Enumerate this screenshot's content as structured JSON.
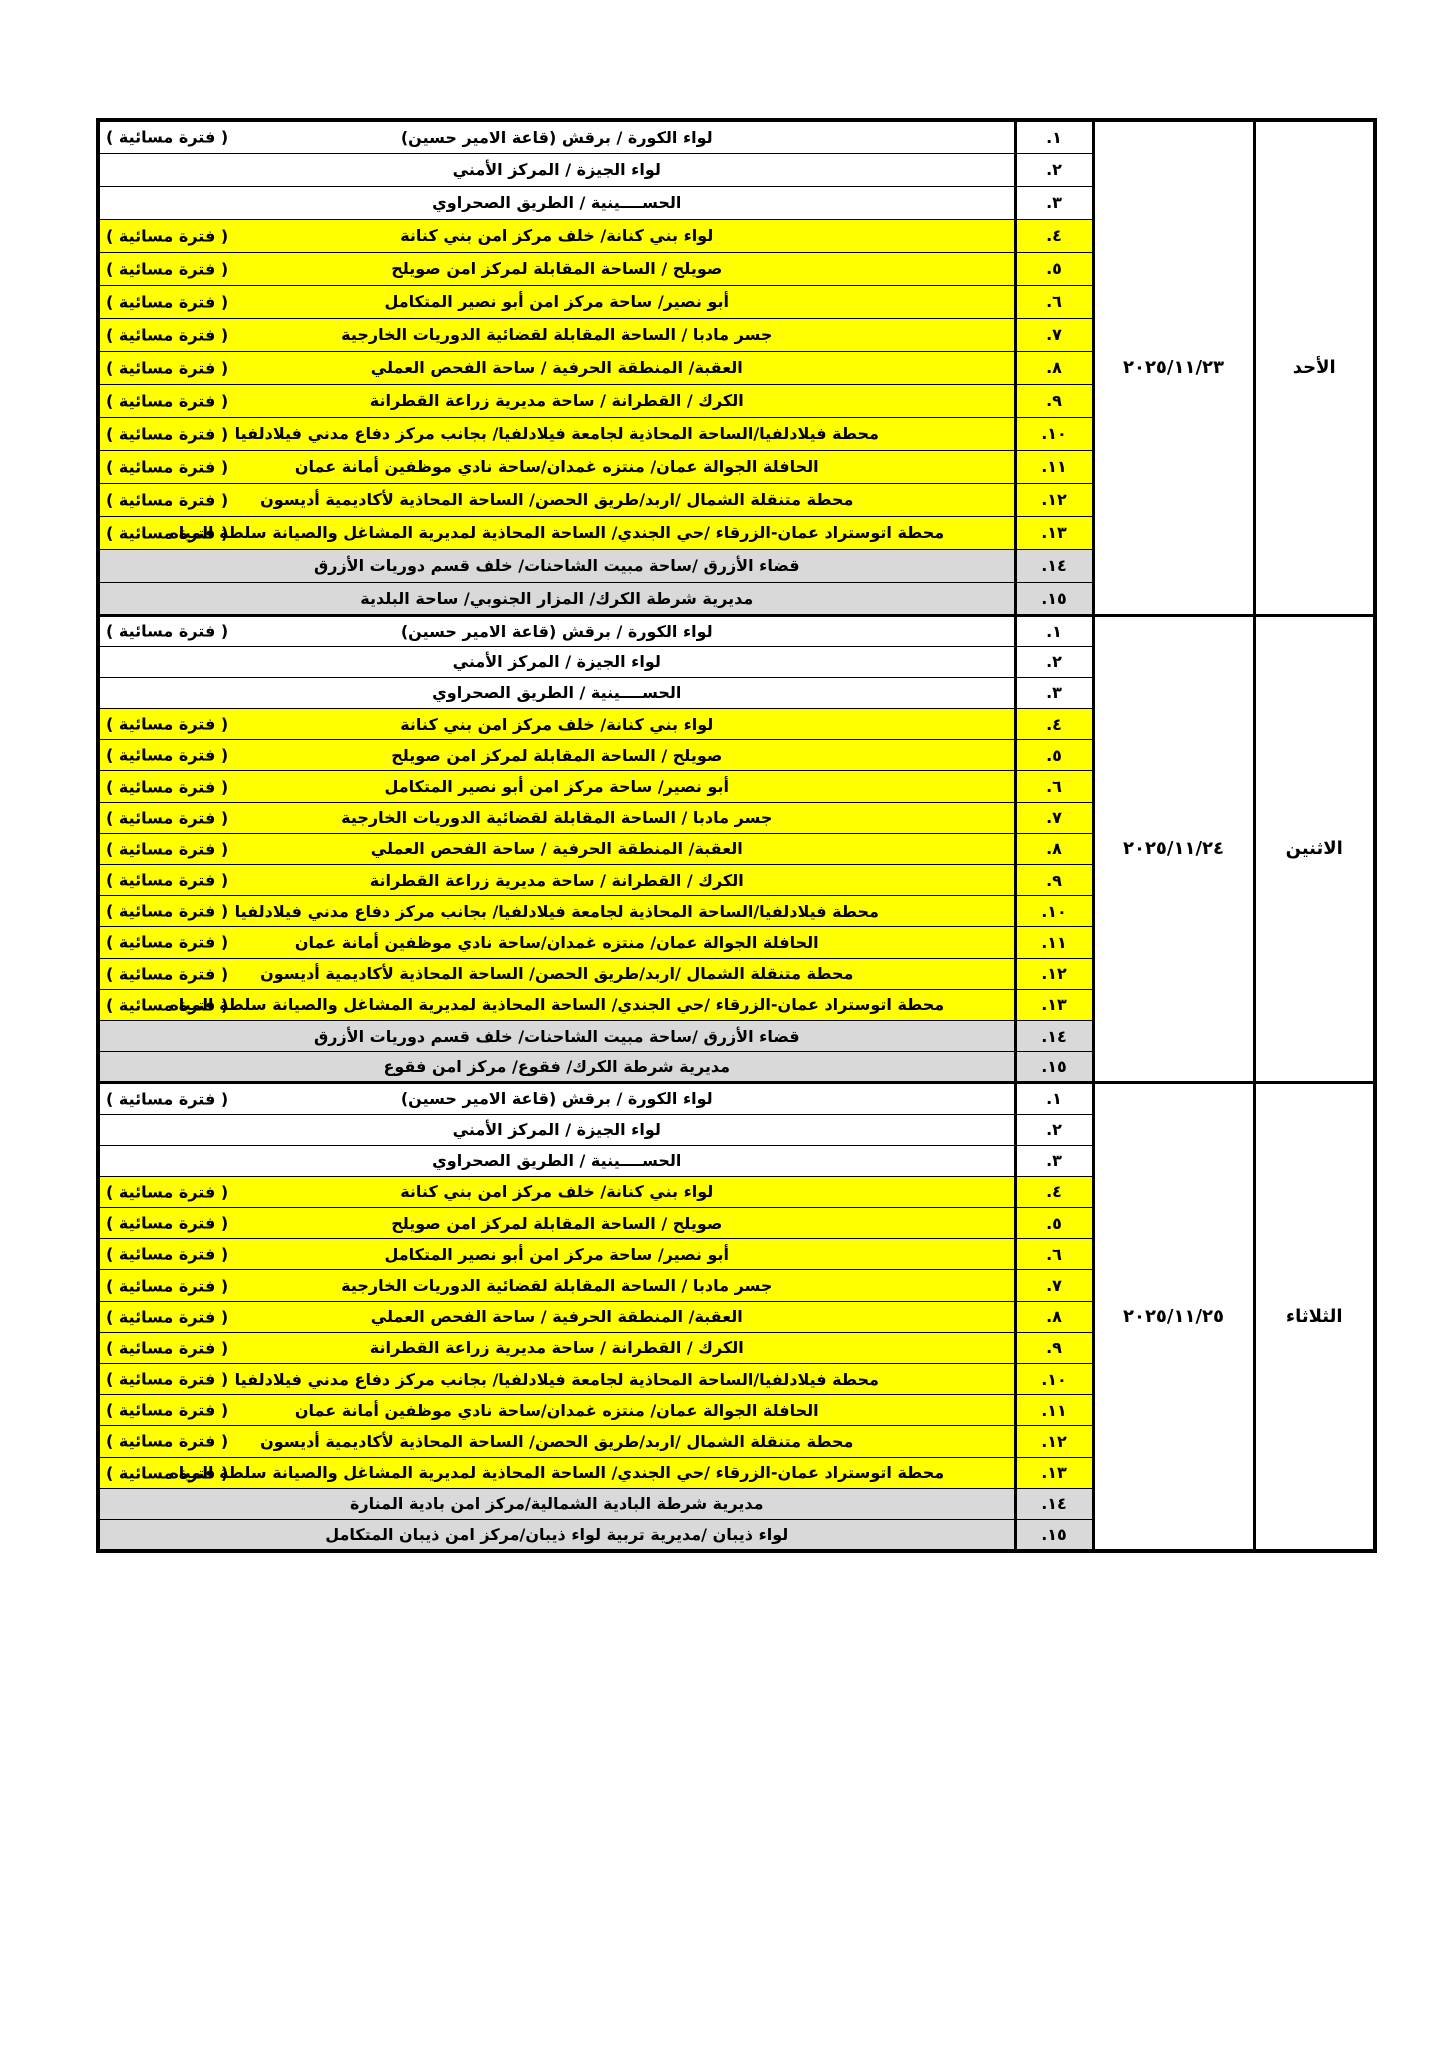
{
  "schedule": [
    {
      "day": "الأحد",
      "date": "٢٠٢٥/١١/٢٣",
      "rows": [
        {
          "num": "١.",
          "text": "لواء الكورة / برقش (قاعة الامير حسين)",
          "note": "( فترة مسائية )"
        },
        {
          "num": "٢.",
          "text": "لواء الجيزة / المركز الأمني"
        },
        {
          "num": "٣.",
          "text": "الحســــينية / الطريق الصحراوي"
        },
        {
          "num": "٤.",
          "text": "لواء بني كنانة/ خلف مركز امن بني كنانة",
          "note": "( فترة مسائية )"
        },
        {
          "num": "٥.",
          "text": "صويلح / الساحة المقابلة لمركز امن صويلح",
          "note": "( فترة مسائية )"
        },
        {
          "num": "٦.",
          "text": "أبو نصير/ ساحة مركز امن أبو نصير المتكامل",
          "note": "( فترة مسائية )"
        },
        {
          "num": "٧.",
          "text": "جسر مادبا / الساحة المقابلة لقضائية الدوريات الخارجية",
          "note": "( فترة مسائية )"
        },
        {
          "num": "٨.",
          "text": "العقبة/ المنطقة الحرفية / ساحة الفحص العملي",
          "note": "( فترة مسائية )"
        },
        {
          "num": "٩.",
          "text": "الكرك / القطرانة / ساحة مديرية زراعة القطرانة",
          "note": "( فترة مسائية )"
        },
        {
          "num": "١٠.",
          "text": "محطة فيلادلفيا/الساحة المحاذية لجامعة فيلادلفيا/ بجانب مركز دفاع مدني فيلادلفيا",
          "note": "( فترة مسائية )"
        },
        {
          "num": "١١.",
          "text": "الحافلة الجوالة عمان/ منتزه غمدان/ساحة نادي موظفين أمانة عمان",
          "note": "( فترة مسائية )"
        },
        {
          "num": "١٢.",
          "text": "محطة متنقلة الشمال /اربد/طريق الحصن/ الساحة المحاذية لأكاديمية أديسون",
          "note": "( فترة مسائية )"
        },
        {
          "num": "١٣.",
          "text": "محطة اتوستراد عمان-الزرقاء /حي الجندي/ الساحة المحاذية لمديرية المشاغل والصيانة سلطة المياه",
          "note": "( فترة مسائية )"
        },
        {
          "num": "١٤.",
          "text": "قضاء الأزرق /ساحة مبيت الشاحنات/ خلف قسم دوريات الأزرق"
        },
        {
          "num": "١٥.",
          "text": "مديرية شرطة الكرك/ المزار الجنوبي/ ساحة البلدية"
        }
      ]
    },
    {
      "day": "الاثنين",
      "date": "٢٠٢٥/١١/٢٤",
      "rows": [
        {
          "num": "١.",
          "text": "لواء الكورة / برقش (قاعة الامير حسين)",
          "note": "( فترة مسائية )"
        },
        {
          "num": "٢.",
          "text": "لواء الجيزة / المركز الأمني"
        },
        {
          "num": "٣.",
          "text": "الحســــينية / الطريق الصحراوي"
        },
        {
          "num": "٤.",
          "text": "لواء بني كنانة/ خلف مركز امن بني كنانة",
          "note": "( فترة مسائية )"
        },
        {
          "num": "٥.",
          "text": "صويلح / الساحة المقابلة لمركز امن صويلح",
          "note": "( فترة مسائية )"
        },
        {
          "num": "٦.",
          "text": "أبو نصير/ ساحة مركز امن أبو نصير المتكامل",
          "note": "( فترة مسائية )"
        },
        {
          "num": "٧.",
          "text": "جسر مادبا / الساحة المقابلة لقضائية الدوريات الخارجية",
          "note": "( فترة مسائية )"
        },
        {
          "num": "٨.",
          "text": "العقبة/ المنطقة الحرفية / ساحة الفحص العملي",
          "note": "( فترة مسائية )"
        },
        {
          "num": "٩.",
          "text": "الكرك / القطرانة / ساحة مديرية زراعة القطرانة",
          "note": "( فترة مسائية )"
        },
        {
          "num": "١٠.",
          "text": "محطة فيلادلفيا/الساحة المحاذية لجامعة فيلادلفيا/ بجانب مركز دفاع مدني فيلادلفيا",
          "note": "( فترة مسائية )"
        },
        {
          "num": "١١.",
          "text": "الحافلة الجوالة عمان/ منتزه غمدان/ساحة نادي موظفين أمانة عمان",
          "note": "( فترة مسائية )"
        },
        {
          "num": "١٢.",
          "text": "محطة متنقلة الشمال /اربد/طريق الحصن/ الساحة المحاذية لأكاديمية أديسون",
          "note": "( فترة مسائية )"
        },
        {
          "num": "١٣.",
          "text": "محطة اتوستراد عمان-الزرقاء /حي الجندي/ الساحة المحاذية لمديرية المشاغل والصيانة سلطة المياه",
          "note": "( فترة مسائية )"
        },
        {
          "num": "١٤.",
          "text": "قضاء الأزرق /ساحة مبيت الشاحنات/ خلف قسم دوريات الأزرق"
        },
        {
          "num": "١٥.",
          "text": "مديرية شرطة الكرك/ فقوع/ مركز امن فقوع"
        }
      ]
    },
    {
      "day": "الثلاثاء",
      "date": "٢٠٢٥/١١/٢٥",
      "rows": [
        {
          "num": "١.",
          "text": "لواء الكورة / برقش (قاعة الامير حسين)",
          "note": "( فترة مسائية )"
        },
        {
          "num": "٢.",
          "text": "لواء الجيزة / المركز الأمني"
        },
        {
          "num": "٣.",
          "text": "الحســــينية / الطريق الصحراوي"
        },
        {
          "num": "٤.",
          "text": "لواء بني كنانة/ خلف مركز امن بني كنانة",
          "note": "( فترة مسائية )"
        },
        {
          "num": "٥.",
          "text": "صويلح / الساحة المقابلة لمركز امن صويلح",
          "note": "( فترة مسائية )"
        },
        {
          "num": "٦.",
          "text": "أبو نصير/ ساحة مركز امن أبو نصير المتكامل",
          "note": "( فترة مسائية )"
        },
        {
          "num": "٧.",
          "text": "جسر مادبا / الساحة المقابلة لقضائية الدوريات الخارجية",
          "note": "( فترة مسائية )"
        },
        {
          "num": "٨.",
          "text": "العقبة/ المنطقة الحرفية / ساحة الفحص العملي",
          "note": "( فترة مسائية )"
        },
        {
          "num": "٩.",
          "text": "الكرك / القطرانة / ساحة مديرية زراعة القطرانة",
          "note": "( فترة مسائية )"
        },
        {
          "num": "١٠.",
          "text": "محطة فيلادلفيا/الساحة المحاذية لجامعة فيلادلفيا/ بجانب مركز دفاع مدني فيلادلفيا",
          "note": "( فترة مسائية )"
        },
        {
          "num": "١١.",
          "text": "الحافلة الجوالة عمان/ منتزه غمدان/ساحة نادي موظفين أمانة عمان",
          "note": "( فترة مسائية )"
        },
        {
          "num": "١٢.",
          "text": "محطة متنقلة الشمال /اربد/طريق الحصن/ الساحة المحاذية لأكاديمية أديسون",
          "note": "( فترة مسائية )"
        },
        {
          "num": "١٣.",
          "text": "محطة اتوستراد عمان-الزرقاء /حي الجندي/ الساحة المحاذية لمديرية المشاغل والصيانة سلطة المياه",
          "note": "( فترة مسائية )"
        },
        {
          "num": "١٤.",
          "text": "مديرية شرطة البادية الشمالية/مركز امن بادية المنارة"
        },
        {
          "num": "١٥.",
          "text": "لواء ذيبان /مديرية تربية لواء ذيبان/مركز امن ذيبان المتكامل"
        }
      ]
    }
  ]
}
